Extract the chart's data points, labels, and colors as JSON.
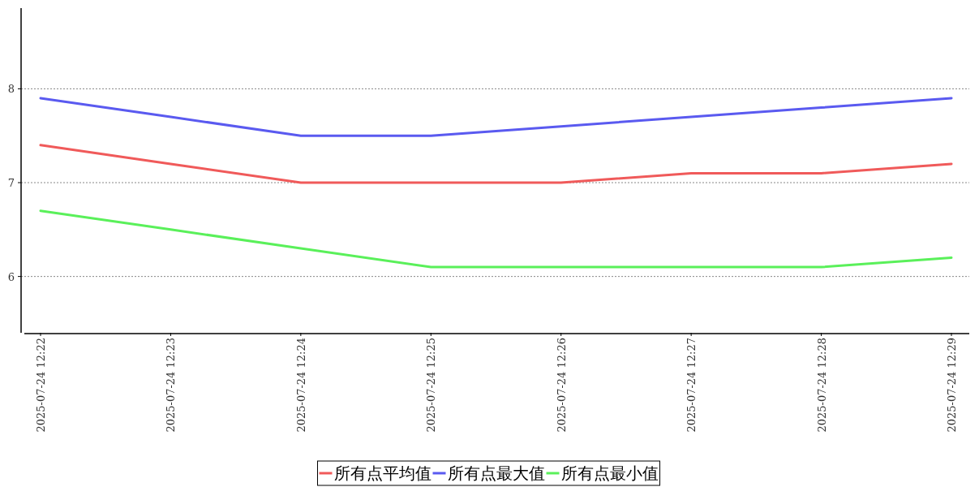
{
  "chart_data": {
    "type": "line",
    "categories": [
      "2025-07-24 12:22",
      "2025-07-24 12:23",
      "2025-07-24 12:24",
      "2025-07-24 12:25",
      "2025-07-24 12:26",
      "2025-07-24 12:27",
      "2025-07-24 12:28",
      "2025-07-24 12:29"
    ],
    "series": [
      {
        "name": "所有点平均值",
        "color": "#f05a5a",
        "values": [
          7.4,
          7.2,
          7.0,
          7.0,
          7.0,
          7.1,
          7.1,
          7.2
        ]
      },
      {
        "name": "所有点最大值",
        "color": "#5a5af0",
        "values": [
          7.9,
          7.7,
          7.5,
          7.5,
          7.6,
          7.7,
          7.8,
          7.9
        ]
      },
      {
        "name": "所有点最小值",
        "color": "#5af05a",
        "values": [
          6.7,
          6.5,
          6.3,
          6.1,
          6.1,
          6.1,
          6.1,
          6.2
        ]
      }
    ],
    "ylim": [
      5.4,
      8.86
    ],
    "yticks": [
      6,
      7,
      8
    ],
    "grid": "y",
    "legend": "bottom",
    "marker": "none",
    "line_style": "solid"
  }
}
